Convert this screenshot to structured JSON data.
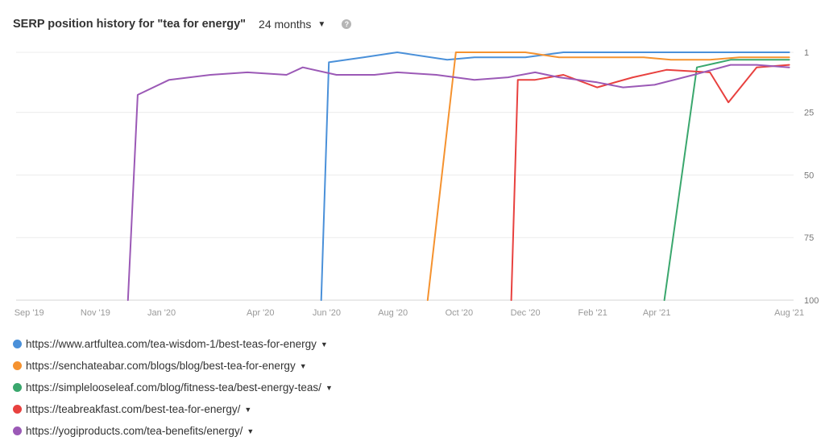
{
  "header": {
    "title": "SERP position history for \"tea for energy\"",
    "range_label": "24 months",
    "range_caret": "▼",
    "help_icon": "?"
  },
  "chart_data": {
    "type": "line",
    "title": "SERP position history for \"tea for energy\"",
    "xlabel": "",
    "ylabel": "",
    "y_axis": {
      "inverted": true,
      "ylim": [
        1,
        100
      ],
      "ticks": [
        1,
        25,
        50,
        75,
        100
      ],
      "position": "right"
    },
    "x_axis": {
      "ticks": [
        "Sep '19",
        "Nov '19",
        "Jan '20",
        "Apr '20",
        "Jun '20",
        "Aug '20",
        "Oct '20",
        "Dec '20",
        "Feb '21",
        "Apr '21",
        "Aug '21"
      ],
      "tick_dates": [
        "2019-09-01",
        "2019-11-01",
        "2020-01-01",
        "2020-04-01",
        "2020-06-01",
        "2020-08-01",
        "2020-10-01",
        "2020-12-01",
        "2021-02-01",
        "2021-04-01",
        "2021-08-01"
      ],
      "range": [
        "2019-08-20",
        "2021-08-05"
      ]
    },
    "grid": true,
    "legend": "bottom",
    "series": [
      {
        "name": "https://www.artfultea.com/tea-wisdom-1/best-teas-for-energy",
        "color": "#4a90d9",
        "points": [
          [
            "2020-05-27",
            100
          ],
          [
            "2020-06-03",
            5
          ],
          [
            "2020-07-05",
            3
          ],
          [
            "2020-08-05",
            1
          ],
          [
            "2020-09-20",
            4
          ],
          [
            "2020-10-15",
            3
          ],
          [
            "2020-12-01",
            3
          ],
          [
            "2021-01-05",
            1
          ],
          [
            "2021-03-01",
            1
          ],
          [
            "2021-08-01",
            1
          ]
        ]
      },
      {
        "name": "https://senchateabar.com/blogs/blog/best-tea-for-energy",
        "color": "#f5922f",
        "points": [
          [
            "2020-09-02",
            100
          ],
          [
            "2020-09-28",
            1
          ],
          [
            "2020-12-01",
            1
          ],
          [
            "2021-01-01",
            3
          ],
          [
            "2021-03-20",
            3
          ],
          [
            "2021-04-14",
            4
          ],
          [
            "2021-05-20",
            4
          ],
          [
            "2021-06-16",
            3
          ],
          [
            "2021-08-01",
            3
          ]
        ]
      },
      {
        "name": "https://simplelooseleaf.com/blog/fitness-tea/best-energy-teas/",
        "color": "#3aa76d",
        "points": [
          [
            "2021-04-08",
            100
          ],
          [
            "2021-05-08",
            7
          ],
          [
            "2021-06-08",
            4
          ],
          [
            "2021-08-01",
            4
          ]
        ]
      },
      {
        "name": "https://teabreakfast.com/best-tea-for-energy/",
        "color": "#e8413f",
        "points": [
          [
            "2020-11-18",
            100
          ],
          [
            "2020-11-24",
            12
          ],
          [
            "2020-12-10",
            12
          ],
          [
            "2021-01-05",
            10
          ],
          [
            "2021-02-05",
            15
          ],
          [
            "2021-03-10",
            11
          ],
          [
            "2021-04-10",
            8
          ],
          [
            "2021-05-20",
            9
          ],
          [
            "2021-06-06",
            21
          ],
          [
            "2021-07-02",
            7
          ],
          [
            "2021-08-01",
            6
          ]
        ]
      },
      {
        "name": "https://yogiproducts.com/tea-benefits/energy/",
        "color": "#9b59b6",
        "points": [
          [
            "2019-12-01",
            100
          ],
          [
            "2019-12-10",
            18
          ],
          [
            "2020-01-08",
            12
          ],
          [
            "2020-02-15",
            10
          ],
          [
            "2020-03-20",
            9
          ],
          [
            "2020-04-25",
            10
          ],
          [
            "2020-05-10",
            7
          ],
          [
            "2020-06-10",
            10
          ],
          [
            "2020-07-15",
            10
          ],
          [
            "2020-08-05",
            9
          ],
          [
            "2020-09-10",
            10
          ],
          [
            "2020-10-15",
            12
          ],
          [
            "2020-11-15",
            11
          ],
          [
            "2020-12-10",
            9
          ],
          [
            "2021-01-01",
            11
          ],
          [
            "2021-02-05",
            13
          ],
          [
            "2021-03-01",
            15
          ],
          [
            "2021-03-30",
            14
          ],
          [
            "2021-05-05",
            10
          ],
          [
            "2021-06-08",
            6
          ],
          [
            "2021-07-02",
            6
          ],
          [
            "2021-08-01",
            7
          ]
        ]
      }
    ]
  },
  "legend": {
    "caret": "▼",
    "items": [
      {
        "label": "https://www.artfultea.com/tea-wisdom-1/best-teas-for-energy",
        "color": "#4a90d9"
      },
      {
        "label": "https://senchateabar.com/blogs/blog/best-tea-for-energy",
        "color": "#f5922f"
      },
      {
        "label": "https://simplelooseleaf.com/blog/fitness-tea/best-energy-teas/",
        "color": "#3aa76d"
      },
      {
        "label": "https://teabreakfast.com/best-tea-for-energy/",
        "color": "#e8413f"
      },
      {
        "label": "https://yogiproducts.com/tea-benefits/energy/",
        "color": "#9b59b6"
      }
    ]
  }
}
